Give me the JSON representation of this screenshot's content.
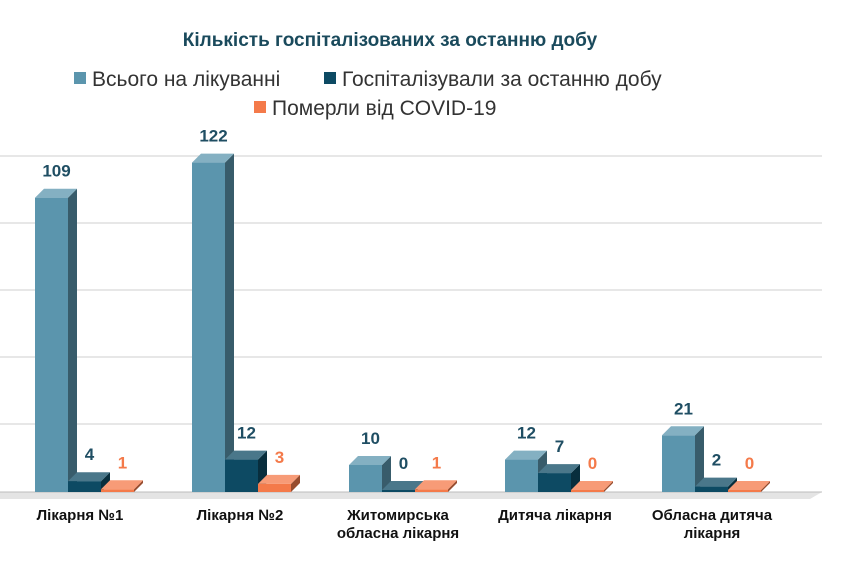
{
  "chart_data": {
    "type": "bar",
    "title": "Кількість госпіталізованих за останню добу",
    "categories": [
      [
        "Лікарня №1"
      ],
      [
        "Лікарня №2"
      ],
      [
        "Житомирська",
        "обласна лікарня"
      ],
      [
        "Дитяча лікарня"
      ],
      [
        "Обласна дитяча",
        "лікарня"
      ]
    ],
    "series": [
      {
        "name": "Всього на лікуванні",
        "values": [
          109,
          122,
          10,
          12,
          21
        ],
        "color": "#5b95ad",
        "label_color": "#1f4e63"
      },
      {
        "name": "Госпіталізували за останню добу",
        "values": [
          4,
          12,
          0,
          7,
          2
        ],
        "color": "#0d4a63",
        "label_color": "#1f4e63"
      },
      {
        "name": "Померли від COVID-19",
        "values": [
          1,
          3,
          1,
          0,
          0
        ],
        "color": "#f47a4a",
        "label_color": "#f47a4a"
      }
    ],
    "ylim": [
      0,
      125
    ],
    "grid": true,
    "legend_position": "top"
  }
}
